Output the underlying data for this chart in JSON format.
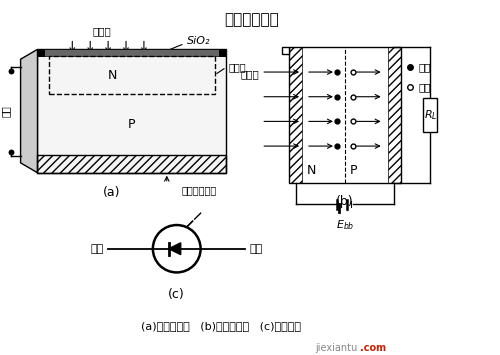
{
  "title": "硅光电二极管",
  "bg_color": "#ffffff",
  "caption": "(a)结构原理；   (b)工作原理；   (c)电路符号",
  "label_a": "(a)",
  "label_b": "(b)",
  "label_c": "(c)",
  "label_a_sub": "镀镍蒸铝电极",
  "sio2": "SiO₂",
  "haoJin": "耗尽区",
  "dianJi": "电极",
  "ruSheGuang": "入射光",
  "dianZi": "电子",
  "kongXue": "空穴",
  "qianJi": "前极",
  "houJi": "后极",
  "N": "N",
  "P": "P",
  "ebb": "$E_{bb}$",
  "rl": "$R_L$",
  "watermark1": "jiexiantu",
  "watermark2": ".com",
  "watermark_color1": "#888888",
  "watermark_color2": "#cc2200"
}
